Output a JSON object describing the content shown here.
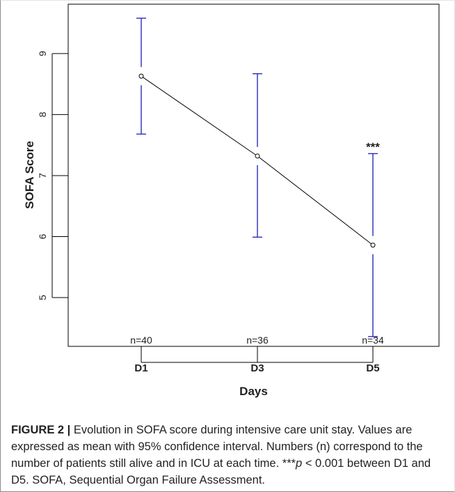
{
  "chart_data": {
    "type": "line",
    "categories": [
      "D1",
      "D3",
      "D5"
    ],
    "series": [
      {
        "values": [
          8.63,
          7.32,
          5.86
        ],
        "ci_lower": [
          7.68,
          5.99,
          4.36
        ],
        "ci_upper": [
          9.58,
          8.67,
          7.36
        ]
      }
    ],
    "n_labels": [
      "n=40",
      "n=36",
      "n=34"
    ],
    "annotation": {
      "category": "D5",
      "text": "***"
    },
    "xlabel": "Days",
    "ylabel": "SOFA Score",
    "yticks": [
      5,
      6,
      7,
      8,
      9
    ],
    "ytick_labels": [
      "5",
      "6",
      "7",
      "8",
      "9"
    ],
    "ylim": [
      4.2,
      9.81
    ],
    "grid": false,
    "colors": {
      "line": "#000000",
      "errorbar": "#2b2bbf",
      "axis": "#000000"
    }
  },
  "caption": {
    "label": "FIGURE 2 |",
    "part1": " Evolution in SOFA score during intensive care unit stay. Values are expressed as mean with 95% confidence interval. Numbers (n) correspond to the number of patients still alive and in ICU at each time. ***",
    "p": "p",
    "part2": " < 0.001 between D1 and D5. SOFA, Sequential Organ Failure Assessment."
  }
}
